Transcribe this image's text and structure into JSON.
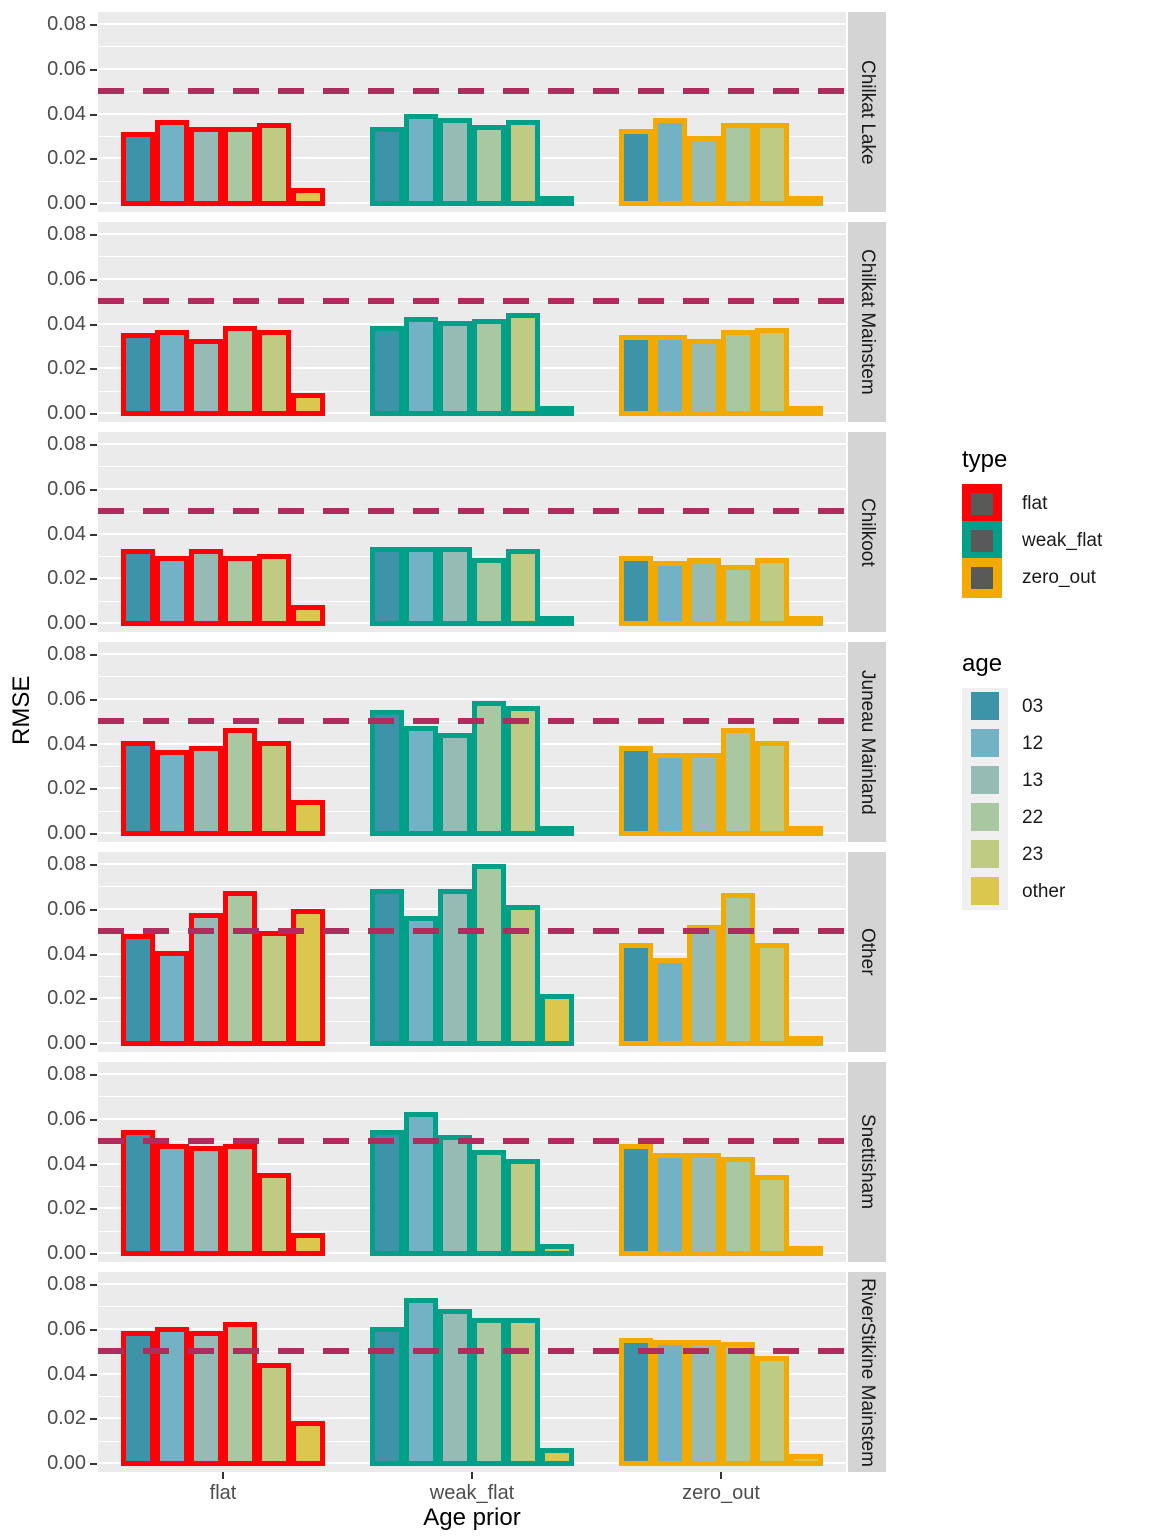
{
  "y_axis": {
    "title": "RMSE",
    "tick_labels": [
      "0.08",
      "0.06",
      "0.04",
      "0.02",
      "0.00"
    ],
    "tick_values": [
      0.08,
      0.06,
      0.04,
      0.02,
      0.0
    ],
    "minor_values": [
      0.01,
      0.03,
      0.05,
      0.07
    ],
    "max": 0.08
  },
  "x_axis": {
    "title": "Age prior",
    "categories": [
      "flat",
      "weak_flat",
      "zero_out"
    ]
  },
  "ref_line": {
    "value": 0.05,
    "style": "dashed",
    "color": "#B02C5C"
  },
  "legend": {
    "type": {
      "title": "type",
      "items": [
        {
          "label": "flat",
          "color": "#FB0207"
        },
        {
          "label": "weak_flat",
          "color": "#00A088"
        },
        {
          "label": "zero_out",
          "color": "#F2A900"
        }
      ]
    },
    "age": {
      "title": "age",
      "items": [
        {
          "label": "03",
          "color": "#3D94A8"
        },
        {
          "label": "12",
          "color": "#73B1C4"
        },
        {
          "label": "13",
          "color": "#95BBB4"
        },
        {
          "label": "22",
          "color": "#A9C8A2"
        },
        {
          "label": "23",
          "color": "#BFCA82"
        },
        {
          "label": "other",
          "color": "#DCC74E"
        }
      ]
    }
  },
  "chart_data": {
    "type": "bar",
    "orientation": "vertical",
    "grouping": "dodged",
    "x_categories": [
      "flat",
      "weak_flat",
      "zero_out"
    ],
    "age_categories": [
      "03",
      "12",
      "13",
      "22",
      "23",
      "other"
    ],
    "type_colors": {
      "flat": "#FB0207",
      "weak_flat": "#00A088",
      "zero_out": "#F2A900"
    },
    "age_colors": {
      "03": "#3D94A8",
      "12": "#73B1C4",
      "13": "#95BBB4",
      "22": "#A9C8A2",
      "23": "#BFCA82",
      "other": "#DCC74E"
    },
    "ylabel": "RMSE",
    "xlabel": "Age prior",
    "ylim": [
      0,
      0.08
    ],
    "ref_line_value": 0.05,
    "facets": [
      {
        "name": "Chilkat Lake",
        "flat": [
          0.031,
          0.036,
          0.033,
          0.033,
          0.035,
          0.006
        ],
        "weak_flat": [
          0.033,
          0.039,
          0.037,
          0.034,
          0.036,
          0.002
        ],
        "zero_out": [
          0.032,
          0.037,
          0.029,
          0.035,
          0.035,
          0.002
        ]
      },
      {
        "name": "Chilkat Mainstem",
        "flat": [
          0.035,
          0.036,
          0.032,
          0.038,
          0.036,
          0.008
        ],
        "weak_flat": [
          0.038,
          0.042,
          0.04,
          0.041,
          0.044,
          0.002
        ],
        "zero_out": [
          0.034,
          0.034,
          0.032,
          0.036,
          0.037,
          0.002
        ]
      },
      {
        "name": "Chilkoot",
        "flat": [
          0.032,
          0.029,
          0.032,
          0.029,
          0.03,
          0.007
        ],
        "weak_flat": [
          0.033,
          0.033,
          0.033,
          0.028,
          0.032,
          0.002
        ],
        "zero_out": [
          0.029,
          0.027,
          0.028,
          0.025,
          0.028,
          0.002
        ]
      },
      {
        "name": "Juneau Mainland",
        "flat": [
          0.04,
          0.036,
          0.038,
          0.046,
          0.04,
          0.014
        ],
        "weak_flat": [
          0.054,
          0.047,
          0.044,
          0.058,
          0.056,
          0.002
        ],
        "zero_out": [
          0.038,
          0.035,
          0.035,
          0.046,
          0.04,
          0.002
        ]
      },
      {
        "name": "Other",
        "flat": [
          0.048,
          0.04,
          0.057,
          0.067,
          0.049,
          0.059
        ],
        "weak_flat": [
          0.068,
          0.056,
          0.068,
          0.079,
          0.061,
          0.021
        ],
        "zero_out": [
          0.044,
          0.037,
          0.052,
          0.066,
          0.044,
          0.002
        ]
      },
      {
        "name": "Snettisham",
        "flat": [
          0.054,
          0.048,
          0.047,
          0.048,
          0.035,
          0.008
        ],
        "weak_flat": [
          0.054,
          0.062,
          0.052,
          0.045,
          0.041,
          0.003
        ],
        "zero_out": [
          0.048,
          0.044,
          0.044,
          0.042,
          0.034,
          0.002
        ]
      },
      {
        "name": "RiverStikine Mainstem",
        "flat": [
          0.058,
          0.06,
          0.058,
          0.062,
          0.044,
          0.018
        ],
        "weak_flat": [
          0.06,
          0.073,
          0.068,
          0.064,
          0.064,
          0.006
        ],
        "zero_out": [
          0.055,
          0.054,
          0.054,
          0.053,
          0.047,
          0.003
        ]
      }
    ]
  }
}
